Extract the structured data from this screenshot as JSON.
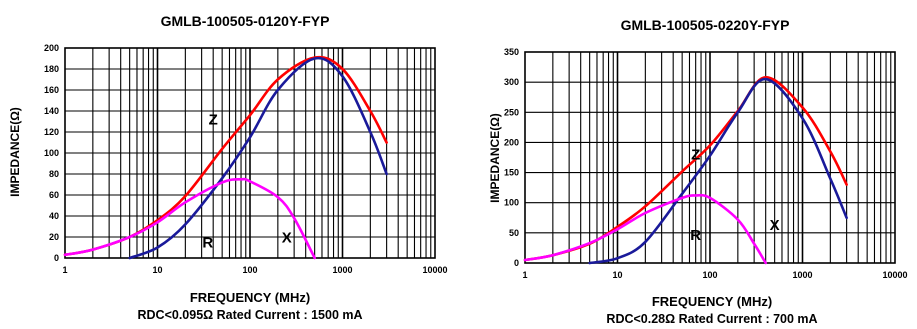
{
  "chart_data": [
    {
      "type": "line",
      "title": "GMLB-100505-0120Y-FYP",
      "xlabel": "FREQUENCY (MHz)",
      "ylabel": "IMPEDANCE(Ω)",
      "note": "RDC<0.095Ω Rated Current : 1500 mA",
      "xscale": "log",
      "xlim": [
        1,
        10000
      ],
      "ylim": [
        0,
        200
      ],
      "xticks": [
        1,
        10,
        100,
        1000,
        10000
      ],
      "xtick_labels": [
        "1",
        "10",
        "100",
        "1000",
        "10000"
      ],
      "yticks": [
        0,
        20,
        40,
        60,
        80,
        100,
        120,
        140,
        160,
        180,
        200
      ],
      "ytick_labels": [
        "0",
        "20",
        "40",
        "60",
        "80",
        "100",
        "120",
        "140",
        "160",
        "180",
        "200"
      ],
      "grid": true,
      "series": [
        {
          "name": "Z",
          "color": "#ff0000",
          "x": [
            1,
            2,
            5,
            10,
            20,
            50,
            100,
            200,
            500,
            1000,
            2000,
            3000
          ],
          "y": [
            3,
            8,
            20,
            36,
            59,
            104,
            136,
            170,
            191,
            180,
            140,
            110
          ]
        },
        {
          "name": "X",
          "color": "#1a1a9a",
          "x": [
            5,
            10,
            20,
            50,
            100,
            200,
            500,
            1000,
            2000,
            3000
          ],
          "y": [
            0,
            10,
            32,
            76,
            115,
            160,
            190,
            173,
            120,
            80
          ]
        },
        {
          "name": "R",
          "color": "#ff00ff",
          "x": [
            1,
            2,
            5,
            10,
            20,
            50,
            80,
            100,
            200,
            300,
            500
          ],
          "y": [
            3,
            8,
            20,
            34,
            53,
            72,
            75,
            73,
            58,
            38,
            0
          ]
        }
      ],
      "labels": [
        {
          "text": "Z",
          "x": 40,
          "y": 127
        },
        {
          "text": "R",
          "x": 35,
          "y": 10
        },
        {
          "text": "X",
          "x": 250,
          "y": 15
        }
      ]
    },
    {
      "type": "line",
      "title": "GMLB-100505-0220Y-FYP",
      "xlabel": "FREQUENCY (MHz)",
      "ylabel": "IMPEDANCE(Ω)",
      "note": "RDC<0.28Ω Rated Current : 700 mA",
      "xscale": "log",
      "xlim": [
        1,
        10000
      ],
      "ylim": [
        0,
        350
      ],
      "xticks": [
        1,
        10,
        100,
        1000,
        10000
      ],
      "xtick_labels": [
        "1",
        "10",
        "100",
        "1000",
        "10000"
      ],
      "yticks": [
        0,
        50,
        100,
        150,
        200,
        250,
        300,
        350
      ],
      "ytick_labels": [
        "0",
        "50",
        "100",
        "150",
        "200",
        "250",
        "300",
        "350"
      ],
      "grid": true,
      "series": [
        {
          "name": "Z",
          "color": "#ff0000",
          "x": [
            1,
            2,
            5,
            10,
            20,
            50,
            100,
            200,
            400,
            1000,
            2000,
            3000
          ],
          "y": [
            5,
            13,
            32,
            60,
            94,
            152,
            195,
            252,
            308,
            258,
            185,
            130
          ]
        },
        {
          "name": "X",
          "color": "#1a1a9a",
          "x": [
            5,
            10,
            20,
            50,
            100,
            200,
            400,
            1000,
            2000,
            3000
          ],
          "y": [
            0,
            8,
            35,
            115,
            178,
            250,
            305,
            240,
            140,
            75
          ]
        },
        {
          "name": "R",
          "color": "#ff00ff",
          "x": [
            1,
            2,
            5,
            10,
            20,
            50,
            70,
            100,
            200,
            300,
            400
          ],
          "y": [
            5,
            13,
            33,
            56,
            83,
            108,
            112,
            108,
            72,
            32,
            0
          ]
        }
      ],
      "labels": [
        {
          "text": "Z",
          "x": 70,
          "y": 172
        },
        {
          "text": "R",
          "x": 70,
          "y": 38
        },
        {
          "text": "X",
          "x": 500,
          "y": 55
        }
      ]
    }
  ]
}
